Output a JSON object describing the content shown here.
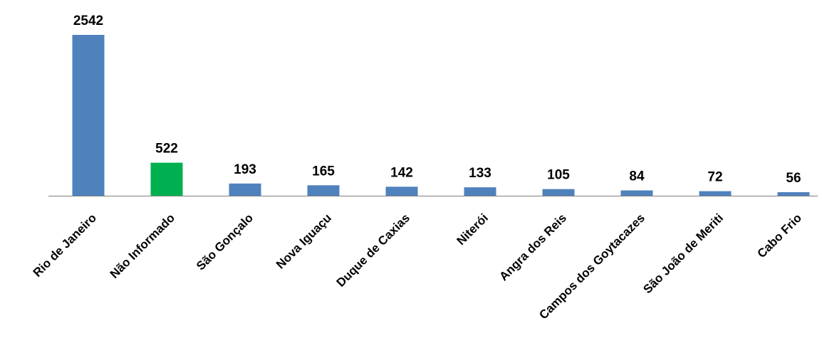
{
  "chart_data": {
    "type": "bar",
    "categories": [
      "Rio de Janeiro",
      "Não Informado",
      "São Gonçalo",
      "Nova Iguaçu",
      "Duque de Caxias",
      "Niterói",
      "Angra dos Reis",
      "Campos dos Goytacazes",
      "São João de Meriti",
      "Cabo Frio"
    ],
    "values": [
      2542,
      522,
      193,
      165,
      142,
      133,
      105,
      84,
      72,
      56
    ],
    "ylim": [
      0,
      2542
    ],
    "grid": false,
    "legend": "none",
    "colors": {
      "default_bar": "#4f81bd",
      "highlight_bar": "#00b050",
      "axis": "#808080"
    },
    "highlight_index": 1
  }
}
